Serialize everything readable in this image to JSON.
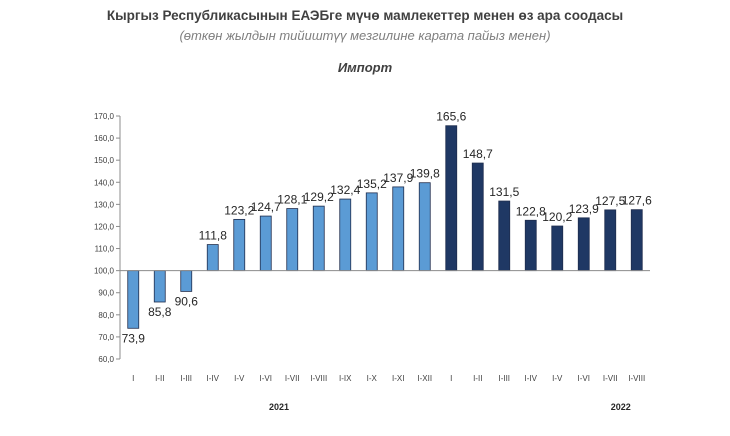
{
  "chart_data": {
    "type": "bar",
    "title": "Кыргыз Республикасынын ЕАЭБге мүчө мамлекеттер менен өз ара соодасы",
    "subtitle": "(өткөн жылдын тийиштүү мезгилине карата пайыз менен)",
    "series_title": "Импорт",
    "baseline": 100,
    "ylim": [
      60,
      170
    ],
    "yticks": [
      "60,0",
      "70,0",
      "80,0",
      "90,0",
      "100,0",
      "110,0",
      "120,0",
      "130,0",
      "140,0",
      "150,0",
      "160,0",
      "170,0"
    ],
    "categories": [
      "I",
      "I-II",
      "I-III",
      "I-IV",
      "I-V",
      "I-VI",
      "I-VII",
      "I-VIII",
      "I-IX",
      "I-X",
      "I-XI",
      "I-XII",
      "I",
      "I-II",
      "I-III",
      "I-IV",
      "I-V",
      "I-VI",
      "I-VII",
      "I-VIII"
    ],
    "values": [
      73.9,
      85.8,
      90.6,
      111.8,
      123.2,
      124.7,
      128.1,
      129.2,
      132.4,
      135.2,
      137.9,
      139.8,
      165.6,
      148.7,
      131.5,
      122.8,
      120.2,
      123.9,
      127.5,
      127.6
    ],
    "labels": [
      "73,9",
      "85,8",
      "90,6",
      "111,8",
      "123,2",
      "124,7",
      "128,1",
      "129,2",
      "132,4",
      "135,2",
      "137,9",
      "139,8",
      "165,6",
      "148,7",
      "131,5",
      "122,8",
      "120,2",
      "123,9",
      "127,5",
      "127,6"
    ],
    "groups": [
      {
        "name": "2021",
        "count": 12,
        "color": "#5b9bd5"
      },
      {
        "name": "2022",
        "count": 8,
        "color": "#1f3864"
      }
    ],
    "bar_border_color": "#1f2d4d",
    "grid": false
  }
}
